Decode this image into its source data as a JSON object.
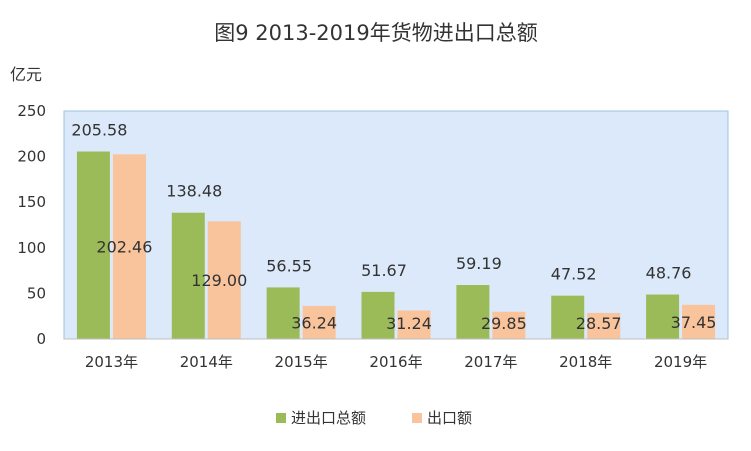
{
  "colors": {
    "plot_background": "#dbe9fa",
    "plot_border": "#9dc3e6",
    "axis_line": "#bfbfbf",
    "series_total": "#9bbb59",
    "series_export": "#f9c39b"
  },
  "chart_data": {
    "type": "bar",
    "title": "图9 2013-2019年货物进出口总额",
    "ylabel": "亿元",
    "xlabel": "",
    "ylim": [
      0,
      250
    ],
    "yticks": [
      0,
      50,
      100,
      150,
      200,
      250
    ],
    "grid": false,
    "legend_position": "bottom",
    "categories": [
      "2013年",
      "2014年",
      "2015年",
      "2016年",
      "2017年",
      "2018年",
      "2019年"
    ],
    "series": [
      {
        "name": "进出口总额",
        "values": [
          205.58,
          138.48,
          56.55,
          51.67,
          59.19,
          47.52,
          48.76
        ],
        "labels": [
          "205.58",
          "138.48",
          "56.55",
          "51.67",
          "59.19",
          "47.52",
          "48.76"
        ]
      },
      {
        "name": "出口额",
        "values": [
          202.46,
          129.0,
          36.24,
          31.24,
          29.85,
          28.57,
          37.45
        ],
        "labels": [
          "202.46",
          "129.00",
          "36.24",
          "31.24",
          "29.85",
          "28.57",
          "37.45"
        ]
      }
    ]
  }
}
